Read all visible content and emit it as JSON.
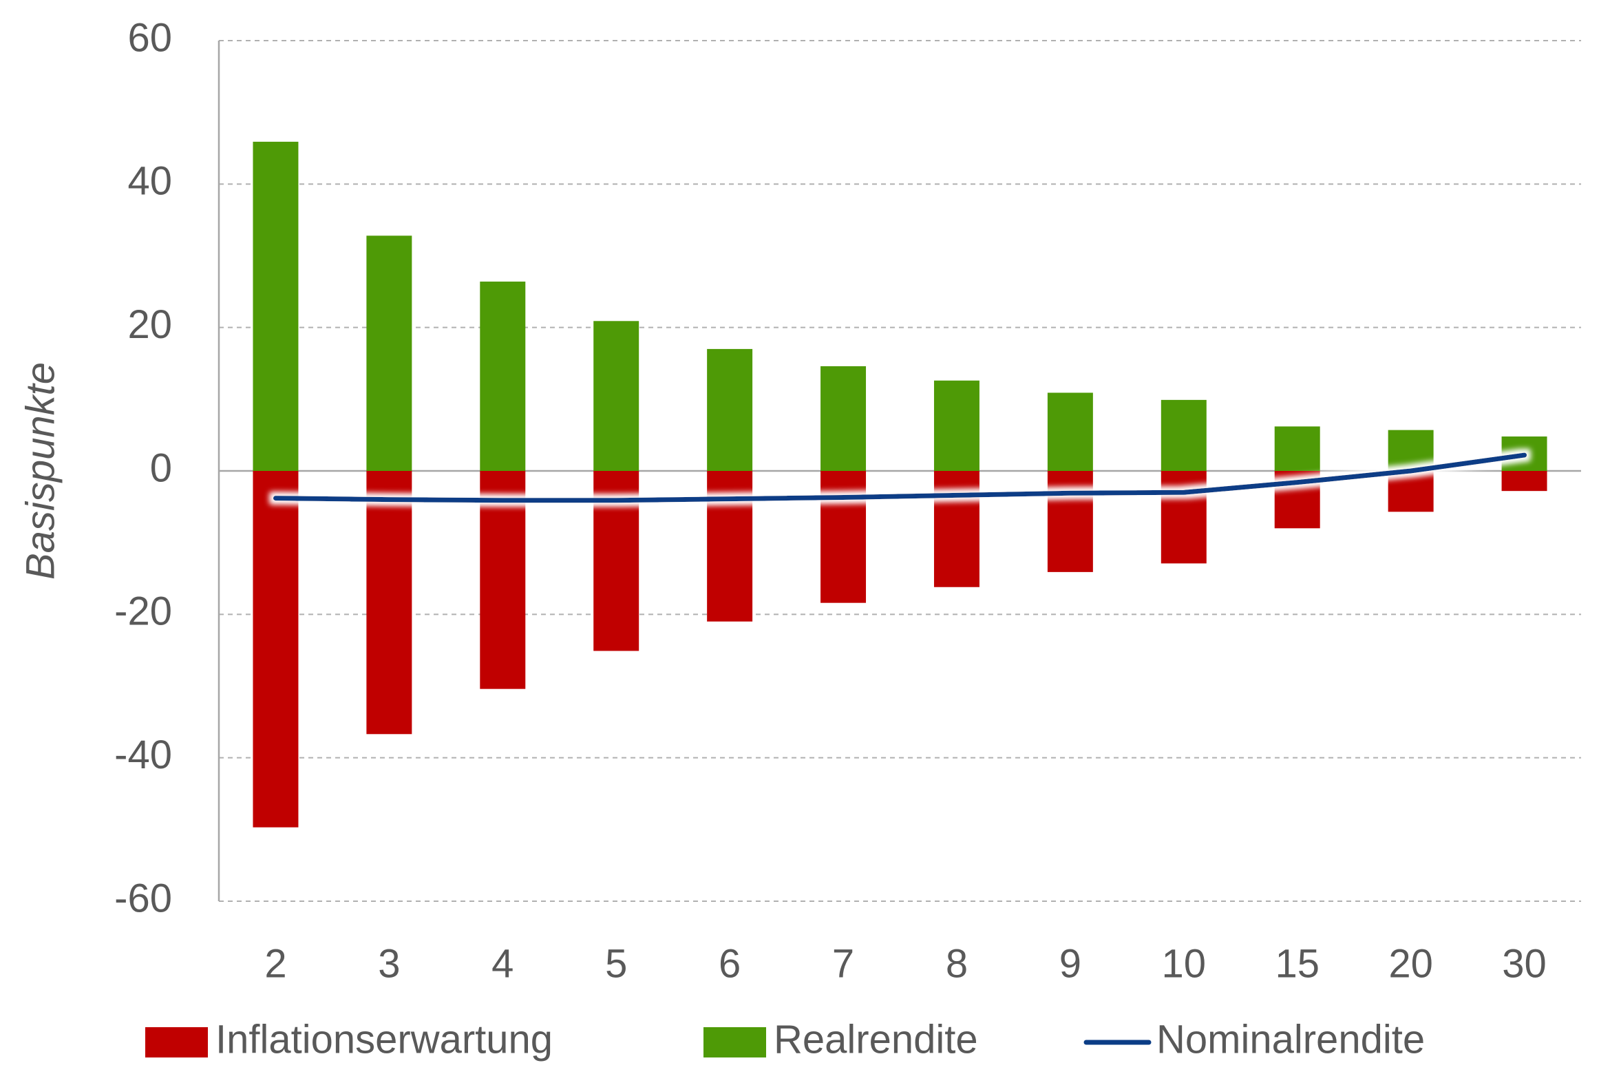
{
  "chart_data": {
    "type": "bar",
    "y_label": "Basispunkte",
    "categories": [
      "2",
      "3",
      "4",
      "5",
      "6",
      "7",
      "8",
      "9",
      "10",
      "15",
      "20",
      "30"
    ],
    "series": [
      {
        "name": "Inflationserwartung",
        "type": "bar",
        "color": "#c00000",
        "values": [
          -49.7,
          -36.7,
          -30.4,
          -25.1,
          -21.0,
          -18.4,
          -16.2,
          -14.1,
          -12.9,
          -8.0,
          -5.7,
          -2.8
        ]
      },
      {
        "name": "Realrendite",
        "type": "bar",
        "color": "#4e9a06",
        "values": [
          45.9,
          32.8,
          26.4,
          20.9,
          17.0,
          14.6,
          12.6,
          10.9,
          9.9,
          6.2,
          5.7,
          4.8
        ]
      },
      {
        "name": "Nominalrendite",
        "type": "line",
        "color": "#0b3d86",
        "values": [
          -3.8,
          -4.0,
          -4.1,
          -4.1,
          -3.9,
          -3.7,
          -3.4,
          -3.1,
          -3.0,
          -1.6,
          0.0,
          2.2
        ]
      }
    ],
    "ylim": [
      -60,
      60
    ],
    "yticks": [
      -60,
      -40,
      -20,
      0,
      20,
      40,
      60
    ],
    "grid": true,
    "legend": "bottom"
  }
}
